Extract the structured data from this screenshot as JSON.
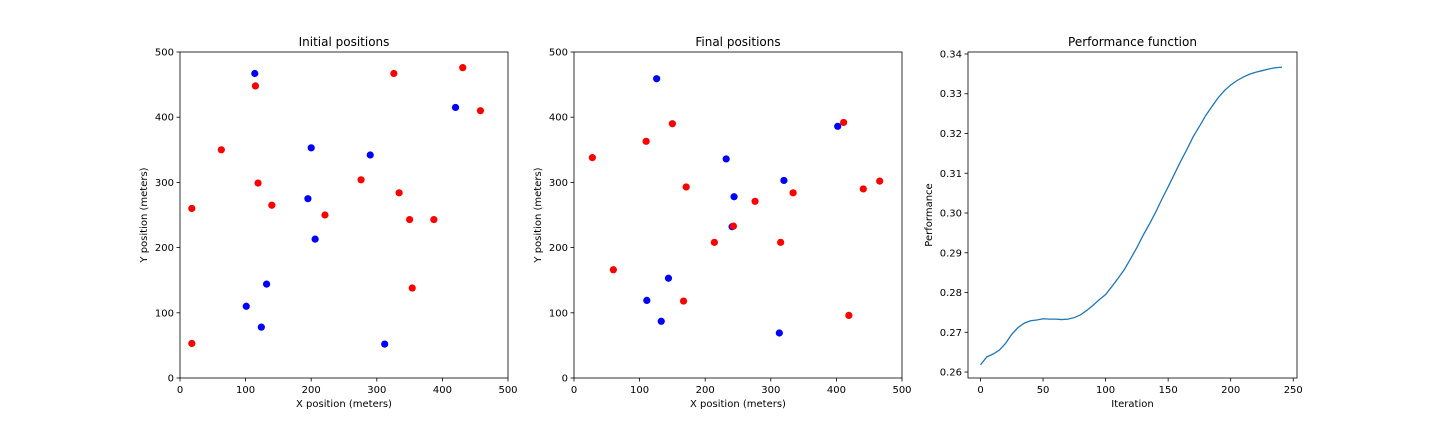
{
  "chart_data": [
    {
      "type": "scatter",
      "title": "Initial positions",
      "xlabel": "X position (meters)",
      "ylabel": "Y position (meters)",
      "xlim": [
        0,
        500
      ],
      "ylim": [
        0,
        500
      ],
      "xticks": [
        0,
        100,
        200,
        300,
        400,
        500
      ],
      "yticks": [
        0,
        100,
        200,
        300,
        400,
        500
      ],
      "grid": false,
      "series": [
        {
          "color": "#0000ff",
          "points": [
            [
              114,
              467
            ],
            [
              420,
              415
            ],
            [
              200,
              353
            ],
            [
              290,
              342
            ],
            [
              195,
              275
            ],
            [
              206,
              213
            ],
            [
              132,
              144
            ],
            [
              101,
              110
            ],
            [
              124,
              78
            ],
            [
              312,
              52
            ]
          ]
        },
        {
          "color": "#ff0000",
          "points": [
            [
              431,
              476
            ],
            [
              326,
              467
            ],
            [
              115,
              448
            ],
            [
              458,
              410
            ],
            [
              63,
              350
            ],
            [
              119,
              299
            ],
            [
              276,
              304
            ],
            [
              334,
              284
            ],
            [
              140,
              265
            ],
            [
              18,
              260
            ],
            [
              221,
              250
            ],
            [
              350,
              243
            ],
            [
              387,
              243
            ],
            [
              354,
              138
            ],
            [
              18,
              53
            ]
          ]
        }
      ]
    },
    {
      "type": "scatter",
      "title": "Final positions",
      "xlabel": "X position (meters)",
      "ylabel": "Y position (meters)",
      "xlim": [
        0,
        500
      ],
      "ylim": [
        0,
        500
      ],
      "xticks": [
        0,
        100,
        200,
        300,
        400,
        500
      ],
      "yticks": [
        0,
        100,
        200,
        300,
        400,
        500
      ],
      "grid": false,
      "series": [
        {
          "color": "#0000ff",
          "points": [
            [
              126,
              459
            ],
            [
              402,
              386
            ],
            [
              232,
              336
            ],
            [
              320,
              303
            ],
            [
              244,
              278
            ],
            [
              241,
              232
            ],
            [
              144,
              153
            ],
            [
              111,
              119
            ],
            [
              133,
              87
            ],
            [
              313,
              69
            ]
          ]
        },
        {
          "color": "#ff0000",
          "points": [
            [
              411,
              392
            ],
            [
              150,
              390
            ],
            [
              110,
              363
            ],
            [
              28,
              338
            ],
            [
              466,
              302
            ],
            [
              171,
              293
            ],
            [
              441,
              290
            ],
            [
              334,
              284
            ],
            [
              276,
              271
            ],
            [
              243,
              233
            ],
            [
              214,
              208
            ],
            [
              315,
              208
            ],
            [
              60,
              166
            ],
            [
              167,
              118
            ],
            [
              419,
              96
            ]
          ]
        }
      ]
    },
    {
      "type": "line",
      "title": "Performance function",
      "xlabel": "Iteration",
      "ylabel": "Performance",
      "xlim": [
        -10,
        253
      ],
      "ylim": [
        0.2585,
        0.3405
      ],
      "xticks": [
        0,
        50,
        100,
        150,
        200,
        250
      ],
      "yticks": [
        0.26,
        0.27,
        0.28,
        0.29,
        0.3,
        0.31,
        0.32,
        0.33,
        0.34
      ],
      "grid": false,
      "series": [
        {
          "color": "#1f77b4",
          "x": [
            0,
            5,
            10,
            15,
            20,
            25,
            30,
            35,
            40,
            45,
            50,
            55,
            60,
            65,
            70,
            75,
            80,
            85,
            90,
            95,
            100,
            105,
            110,
            115,
            120,
            125,
            130,
            135,
            140,
            145,
            150,
            155,
            160,
            165,
            170,
            175,
            180,
            185,
            190,
            195,
            200,
            205,
            210,
            215,
            220,
            225,
            230,
            235,
            241
          ],
          "y": [
            0.2618,
            0.2638,
            0.2645,
            0.2655,
            0.2672,
            0.2695,
            0.2712,
            0.2723,
            0.2729,
            0.2731,
            0.2734,
            0.2733,
            0.2733,
            0.2732,
            0.2733,
            0.2737,
            0.2744,
            0.2755,
            0.2768,
            0.2782,
            0.2795,
            0.2815,
            0.2836,
            0.2858,
            0.2885,
            0.2913,
            0.2944,
            0.2972,
            0.3002,
            0.3035,
            0.3066,
            0.3098,
            0.313,
            0.316,
            0.3192,
            0.3218,
            0.3245,
            0.3268,
            0.329,
            0.3308,
            0.3322,
            0.3333,
            0.3342,
            0.3349,
            0.3354,
            0.3358,
            0.3362,
            0.3365,
            0.3367
          ]
        }
      ]
    }
  ]
}
